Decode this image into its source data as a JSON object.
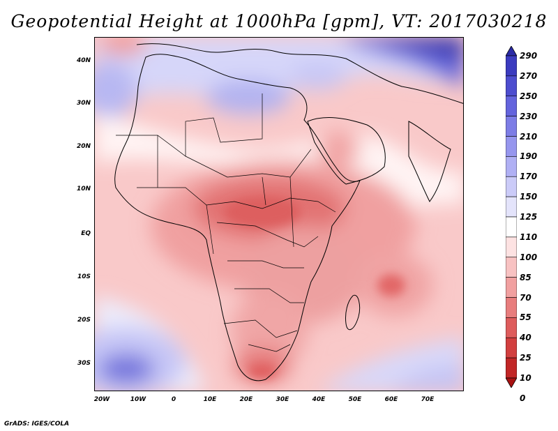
{
  "title": "Geopotential Height at 1000hPa [gpm], VT: 2017030218",
  "y_axis_labels": [
    "40N",
    "30N",
    "20N",
    "10N",
    "EQ",
    "10S",
    "20S",
    "30S"
  ],
  "x_axis_labels": [
    "20W",
    "10W",
    "0",
    "10E",
    "20E",
    "30E",
    "40E",
    "50E",
    "60E",
    "70E"
  ],
  "colorbar": {
    "labels": [
      "290",
      "270",
      "250",
      "230",
      "210",
      "190",
      "170",
      "150",
      "125",
      "110",
      "100",
      "85",
      "70",
      "55",
      "40",
      "25",
      "10",
      "0"
    ],
    "colors": [
      "#2a2aa6",
      "#3b3bbf",
      "#4d4dcf",
      "#6464dd",
      "#7d7de6",
      "#9696ee",
      "#b0b0f4",
      "#cbcbf8",
      "#e4e4fb",
      "#ffffff",
      "#fde2e2",
      "#f8c2c2",
      "#f1a0a0",
      "#e87d7d",
      "#de5c5c",
      "#d23f3f",
      "#c12626",
      "#a81212"
    ]
  },
  "credit": "GrADS: IGES/COLA"
}
